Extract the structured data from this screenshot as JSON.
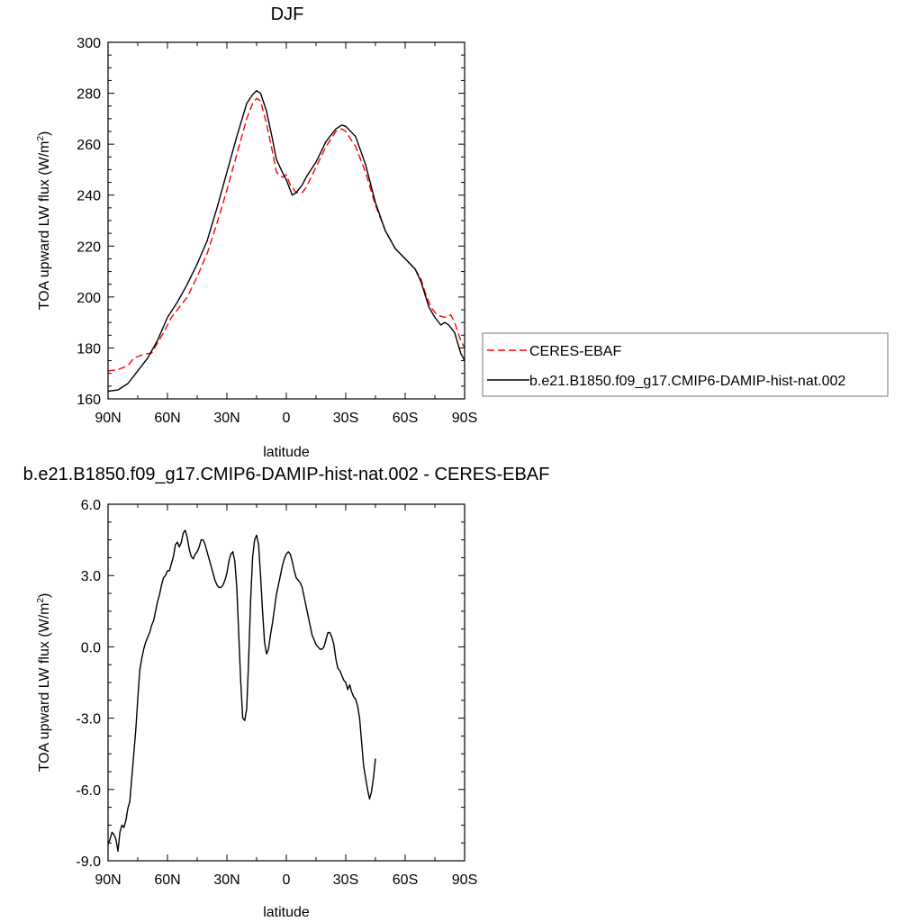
{
  "chart_data": [
    {
      "type": "line",
      "title": "DJF",
      "xlabel": "latitude",
      "ylabel": "TOA upward LW flux (W/m",
      "ylabel_sup": "2",
      "ylabel_close": ")",
      "xlim": [
        -90,
        90
      ],
      "ylim": [
        160,
        300
      ],
      "xticks": [
        -90,
        -60,
        -30,
        0,
        30,
        60,
        90
      ],
      "xticklabels": [
        "90N",
        "60N",
        "30N",
        "0",
        "30S",
        "60S",
        "90S"
      ],
      "yticks": [
        160,
        180,
        200,
        220,
        240,
        260,
        280,
        300
      ],
      "yticklabels": [
        "160",
        "180",
        "200",
        "220",
        "240",
        "260",
        "280",
        "300"
      ],
      "grid": false,
      "legend_position": "right",
      "series": [
        {
          "name": "CERES-EBAF",
          "color": "#ff0000",
          "style": "dashed",
          "points": [
            [
              -90,
              171
            ],
            [
              -85,
              171.5
            ],
            [
              -80,
              173
            ],
            [
              -77,
              176
            ],
            [
              -72,
              177.5
            ],
            [
              -68,
              178
            ],
            [
              -62,
              186
            ],
            [
              -58,
              192
            ],
            [
              -55,
              195
            ],
            [
              -50,
              200
            ],
            [
              -45,
              208
            ],
            [
              -40,
              217
            ],
            [
              -35,
              229
            ],
            [
              -30,
              242
            ],
            [
              -25,
              256
            ],
            [
              -20,
              270
            ],
            [
              -17,
              276
            ],
            [
              -15,
              278
            ],
            [
              -13,
              277
            ],
            [
              -10,
              268
            ],
            [
              -7,
              257
            ],
            [
              -5,
              249
            ],
            [
              -2,
              247
            ],
            [
              0,
              248
            ],
            [
              2,
              244
            ],
            [
              5,
              241
            ],
            [
              8,
              241
            ],
            [
              10,
              243
            ],
            [
              15,
              251
            ],
            [
              20,
              259
            ],
            [
              25,
              265
            ],
            [
              28,
              266
            ],
            [
              30,
              265
            ],
            [
              35,
              259
            ],
            [
              40,
              249
            ],
            [
              45,
              236
            ],
            [
              50,
              226
            ],
            [
              55,
              219
            ],
            [
              60,
              215
            ],
            [
              65,
              211
            ],
            [
              68,
              207
            ],
            [
              70,
              202
            ],
            [
              73,
              196
            ],
            [
              76,
              193
            ],
            [
              80,
              192
            ],
            [
              83,
              193
            ],
            [
              85,
              190
            ],
            [
              88,
              183
            ],
            [
              90,
              180
            ]
          ]
        },
        {
          "name": "b.e21.B1850.f09_g17.CMIP6-DAMIP-hist-nat.002",
          "color": "#000000",
          "style": "solid",
          "points": [
            [
              -90,
              163
            ],
            [
              -85,
              163.5
            ],
            [
              -80,
              166
            ],
            [
              -75,
              171
            ],
            [
              -70,
              176
            ],
            [
              -65,
              183
            ],
            [
              -60,
              192
            ],
            [
              -55,
              198
            ],
            [
              -50,
              205
            ],
            [
              -45,
              213
            ],
            [
              -40,
              222
            ],
            [
              -35,
              235
            ],
            [
              -30,
              249
            ],
            [
              -25,
              263
            ],
            [
              -20,
              276
            ],
            [
              -17,
              279.5
            ],
            [
              -15,
              281
            ],
            [
              -13,
              280
            ],
            [
              -10,
              273
            ],
            [
              -7,
              262
            ],
            [
              -5,
              254
            ],
            [
              -2,
              249
            ],
            [
              0,
              246
            ],
            [
              2,
              242
            ],
            [
              3,
              240
            ],
            [
              5,
              241
            ],
            [
              8,
              244
            ],
            [
              10,
              247
            ],
            [
              15,
              253
            ],
            [
              20,
              261
            ],
            [
              25,
              266
            ],
            [
              28,
              267.5
            ],
            [
              30,
              267
            ],
            [
              35,
              263
            ],
            [
              40,
              252
            ],
            [
              45,
              237
            ],
            [
              50,
              226
            ],
            [
              55,
              219
            ],
            [
              60,
              215
            ],
            [
              65,
              211
            ],
            [
              68,
              206
            ],
            [
              70,
              201
            ],
            [
              72,
              196
            ],
            [
              75,
              192
            ],
            [
              78,
              189
            ],
            [
              80,
              190
            ],
            [
              82,
              189
            ],
            [
              85,
              186
            ],
            [
              88,
              178
            ],
            [
              90,
              175
            ]
          ]
        }
      ]
    },
    {
      "type": "line",
      "title": "b.e21.B1850.f09_g17.CMIP6-DAMIP-hist-nat.002 - CERES-EBAF",
      "xlabel": "latitude",
      "ylabel": "TOA upward LW flux (W/m",
      "ylabel_sup": "2",
      "ylabel_close": ")",
      "xlim": [
        -90,
        90
      ],
      "ylim": [
        -9,
        6
      ],
      "xticks": [
        -90,
        -60,
        -30,
        0,
        30,
        60,
        90
      ],
      "xticklabels": [
        "90N",
        "60N",
        "30N",
        "0",
        "30S",
        "60S",
        "90S"
      ],
      "yticks": [
        -9,
        -6,
        -3,
        0,
        3,
        6
      ],
      "yticklabels": [
        "-9.0",
        "-6.0",
        "-3.0",
        "0.0",
        "3.0",
        "6.0"
      ],
      "grid": false,
      "series": [
        {
          "name": "",
          "color": "#000000",
          "style": "solid",
          "points": [
            [
              -90,
              -8.3
            ],
            [
              -89,
              -8.1
            ],
            [
              -88,
              -7.8
            ],
            [
              -87,
              -7.9
            ],
            [
              -86,
              -8.1
            ],
            [
              -85,
              -8.6
            ],
            [
              -84,
              -7.8
            ],
            [
              -83,
              -7.5
            ],
            [
              -82,
              -7.6
            ],
            [
              -81,
              -7.3
            ],
            [
              -80,
              -6.8
            ],
            [
              -79,
              -6.5
            ],
            [
              -78,
              -5.5
            ],
            [
              -77,
              -4.5
            ],
            [
              -76,
              -3.5
            ],
            [
              -75,
              -2.2
            ],
            [
              -74,
              -1
            ],
            [
              -73,
              -0.5
            ],
            [
              -72,
              -0.1
            ],
            [
              -71,
              0.2
            ],
            [
              -70,
              0.4
            ],
            [
              -69,
              0.6
            ],
            [
              -68,
              0.9
            ],
            [
              -67,
              1.1
            ],
            [
              -66,
              1.5
            ],
            [
              -65,
              1.9
            ],
            [
              -64,
              2.2
            ],
            [
              -63,
              2.6
            ],
            [
              -62,
              2.9
            ],
            [
              -61,
              3
            ],
            [
              -60,
              3.2
            ],
            [
              -59,
              3.2
            ],
            [
              -58,
              3.5
            ],
            [
              -57,
              3.8
            ],
            [
              -56,
              4.3
            ],
            [
              -55,
              4.4
            ],
            [
              -54,
              4.2
            ],
            [
              -53,
              4.4
            ],
            [
              -52,
              4.8
            ],
            [
              -51,
              4.9
            ],
            [
              -50,
              4.6
            ],
            [
              -49,
              4.1
            ],
            [
              -48,
              3.8
            ],
            [
              -47,
              3.7
            ],
            [
              -46,
              3.9
            ],
            [
              -45,
              4
            ],
            [
              -44,
              4.2
            ],
            [
              -43,
              4.5
            ],
            [
              -42,
              4.5
            ],
            [
              -41,
              4.3
            ],
            [
              -40,
              4
            ],
            [
              -39,
              3.7
            ],
            [
              -38,
              3.4
            ],
            [
              -37,
              3.1
            ],
            [
              -36,
              2.8
            ],
            [
              -35,
              2.6
            ],
            [
              -34,
              2.5
            ],
            [
              -33,
              2.5
            ],
            [
              -32,
              2.6
            ],
            [
              -31,
              2.8
            ],
            [
              -30,
              3.1
            ],
            [
              -29,
              3.6
            ],
            [
              -28,
              3.9
            ],
            [
              -27,
              4
            ],
            [
              -26,
              3.6
            ],
            [
              -25,
              2.5
            ],
            [
              -24,
              0.5
            ],
            [
              -23,
              -1.5
            ],
            [
              -22,
              -3
            ],
            [
              -21,
              -3.1
            ],
            [
              -20,
              -2.6
            ],
            [
              -19,
              -0.5
            ],
            [
              -18,
              2
            ],
            [
              -17,
              3.8
            ],
            [
              -16,
              4.5
            ],
            [
              -15,
              4.7
            ],
            [
              -14,
              4.3
            ],
            [
              -13,
              3
            ],
            [
              -12,
              1.5
            ],
            [
              -11,
              0.2
            ],
            [
              -10,
              -0.3
            ],
            [
              -9,
              -0.1
            ],
            [
              -8,
              0.5
            ],
            [
              -7,
              1
            ],
            [
              -6,
              1.6
            ],
            [
              -5,
              2.2
            ],
            [
              -4,
              2.6
            ],
            [
              -3,
              3
            ],
            [
              -2,
              3.4
            ],
            [
              -1,
              3.7
            ],
            [
              0,
              3.9
            ],
            [
              1,
              4
            ],
            [
              2,
              3.9
            ],
            [
              3,
              3.6
            ],
            [
              4,
              3.2
            ],
            [
              5,
              2.9
            ],
            [
              6,
              2.8
            ],
            [
              7,
              2.7
            ],
            [
              8,
              2.5
            ],
            [
              9,
              2.1
            ],
            [
              10,
              1.7
            ],
            [
              11,
              1.3
            ],
            [
              12,
              0.9
            ],
            [
              13,
              0.5
            ],
            [
              14,
              0.3
            ],
            [
              15,
              0.1
            ],
            [
              16,
              0
            ],
            [
              17,
              -0.1
            ],
            [
              18,
              -0.1
            ],
            [
              19,
              0
            ],
            [
              20,
              0.3
            ],
            [
              21,
              0.6
            ],
            [
              22,
              0.6
            ],
            [
              23,
              0.4
            ],
            [
              24,
              0.1
            ],
            [
              25,
              -0.5
            ],
            [
              26,
              -0.9
            ],
            [
              27,
              -1
            ],
            [
              28,
              -1.2
            ],
            [
              29,
              -1.4
            ],
            [
              30,
              -1.5
            ],
            [
              31,
              -1.8
            ],
            [
              32,
              -1.6
            ],
            [
              33,
              -1.9
            ],
            [
              34,
              -2.1
            ],
            [
              35,
              -2.2
            ],
            [
              36,
              -2.5
            ],
            [
              37,
              -3
            ],
            [
              38,
              -4
            ],
            [
              39,
              -5
            ],
            [
              40,
              -5.5
            ],
            [
              41,
              -6
            ],
            [
              42,
              -6.4
            ],
            [
              43,
              -6.1
            ],
            [
              44,
              -5.5
            ],
            [
              45,
              -4.7
            ]
          ]
        }
      ]
    }
  ]
}
